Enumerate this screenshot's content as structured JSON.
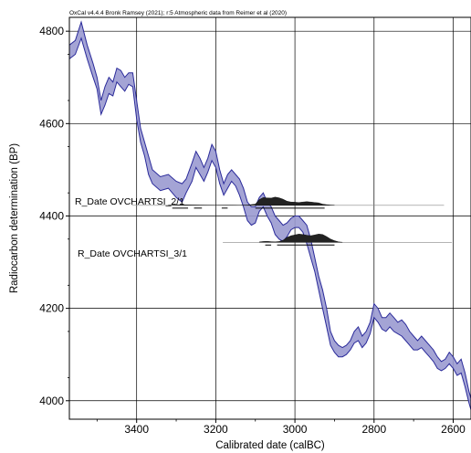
{
  "header": "OxCal v4.4.4 Bronk Ramsey (2021); r:5 Atmospheric data from Reimer et al (2020)",
  "chart_data": {
    "type": "area",
    "xlabel": "Calibrated date (calBC)",
    "ylabel": "Radiocarbon determination (BP)",
    "xlim": [
      3570,
      2555
    ],
    "ylim": [
      3960,
      4830
    ],
    "x_reversed": true,
    "xticks": [
      3400,
      3200,
      3000,
      2800,
      2600
    ],
    "yticks": [
      4000,
      4200,
      4400,
      4600,
      4800
    ],
    "grid": true,
    "band_color": "#9a9ad0",
    "band_edge_color": "#2a2a9a",
    "calibration_curve": {
      "x": [
        3570,
        3555,
        3540,
        3525,
        3510,
        3500,
        3490,
        3480,
        3470,
        3460,
        3450,
        3440,
        3430,
        3420,
        3410,
        3400,
        3390,
        3380,
        3370,
        3360,
        3340,
        3320,
        3300,
        3285,
        3275,
        3260,
        3250,
        3240,
        3230,
        3220,
        3210,
        3200,
        3190,
        3180,
        3170,
        3160,
        3150,
        3140,
        3130,
        3120,
        3110,
        3100,
        3090,
        3080,
        3070,
        3060,
        3050,
        3040,
        3030,
        3020,
        3010,
        3000,
        2990,
        2980,
        2970,
        2960,
        2950,
        2940,
        2930,
        2920,
        2910,
        2900,
        2890,
        2880,
        2870,
        2860,
        2850,
        2840,
        2830,
        2820,
        2810,
        2800,
        2790,
        2780,
        2770,
        2760,
        2750,
        2740,
        2730,
        2720,
        2710,
        2700,
        2690,
        2680,
        2670,
        2660,
        2650,
        2640,
        2630,
        2620,
        2610,
        2600,
        2590,
        2580,
        2570,
        2560,
        2555
      ],
      "upper": [
        4770,
        4780,
        4820,
        4770,
        4730,
        4700,
        4650,
        4680,
        4700,
        4690,
        4720,
        4715,
        4700,
        4710,
        4710,
        4650,
        4590,
        4560,
        4530,
        4500,
        4485,
        4490,
        4475,
        4470,
        4480,
        4515,
        4540,
        4525,
        4505,
        4525,
        4555,
        4540,
        4500,
        4470,
        4490,
        4500,
        4490,
        4480,
        4460,
        4430,
        4420,
        4420,
        4440,
        4450,
        4430,
        4420,
        4400,
        4390,
        4380,
        4385,
        4395,
        4400,
        4400,
        4390,
        4380,
        4350,
        4310,
        4270,
        4240,
        4200,
        4150,
        4130,
        4120,
        4115,
        4120,
        4130,
        4150,
        4160,
        4140,
        4150,
        4170,
        4210,
        4200,
        4180,
        4180,
        4190,
        4180,
        4170,
        4175,
        4165,
        4150,
        4140,
        4130,
        4140,
        4130,
        4120,
        4110,
        4095,
        4085,
        4090,
        4105,
        4095,
        4080,
        4090,
        4060,
        4020,
        4005
      ],
      "lower": [
        4740,
        4750,
        4785,
        4740,
        4700,
        4675,
        4620,
        4640,
        4665,
        4660,
        4690,
        4680,
        4670,
        4685,
        4680,
        4610,
        4560,
        4530,
        4490,
        4470,
        4455,
        4460,
        4440,
        4430,
        4450,
        4475,
        4505,
        4490,
        4475,
        4495,
        4520,
        4505,
        4470,
        4445,
        4460,
        4475,
        4465,
        4445,
        4420,
        4390,
        4380,
        4385,
        4410,
        4420,
        4400,
        4385,
        4360,
        4350,
        4345,
        4355,
        4370,
        4375,
        4375,
        4365,
        4340,
        4310,
        4280,
        4240,
        4200,
        4160,
        4120,
        4105,
        4095,
        4095,
        4100,
        4110,
        4125,
        4130,
        4115,
        4125,
        4145,
        4180,
        4170,
        4155,
        4150,
        4160,
        4150,
        4145,
        4140,
        4130,
        4120,
        4110,
        4110,
        4115,
        4105,
        4095,
        4085,
        4070,
        4065,
        4070,
        4080,
        4070,
        4055,
        4060,
        4030,
        3995,
        3980
      ]
    },
    "annotations": [
      "R_Date OVCHARTSI_2/1",
      "R_Date OVCHARTSI_3/1"
    ],
    "posteriors": [
      {
        "name": "R_Date OVCHARTSI_2/1",
        "baseline_y": 4423,
        "x": [
          3320,
          3300,
          3280,
          3260,
          3240,
          3220,
          3200,
          3180,
          3160,
          3140,
          3120,
          3100,
          3090,
          3080,
          3070,
          3060,
          3050,
          3040,
          3030,
          3020,
          3010,
          3000,
          2990,
          2980,
          2970,
          2960,
          2950,
          2940,
          2930,
          2920,
          2910,
          2900
        ],
        "density": [
          0.03,
          0.05,
          0.06,
          0.05,
          0.04,
          0.03,
          0.02,
          0.03,
          0.03,
          0.02,
          0.04,
          0.15,
          0.7,
          0.95,
          0.9,
          0.88,
          1.0,
          0.92,
          0.75,
          0.5,
          0.4,
          0.38,
          0.35,
          0.4,
          0.45,
          0.4,
          0.35,
          0.3,
          0.15,
          0.08,
          0.04,
          0.01
        ],
        "range_bars": [
          [
            3310,
            3270
          ],
          [
            3255,
            3235
          ],
          [
            3185,
            3170
          ],
          [
            3100,
            2925
          ]
        ]
      },
      {
        "name": "R_Date OVCHARTSI_3/1",
        "baseline_y": 4343,
        "x": [
          3090,
          3080,
          3070,
          3060,
          3050,
          3040,
          3030,
          3020,
          3010,
          3000,
          2990,
          2980,
          2970,
          2960,
          2950,
          2940,
          2930,
          2920,
          2910,
          2900,
          2890,
          2880
        ],
        "density": [
          0.04,
          0.1,
          0.12,
          0.08,
          0.06,
          0.1,
          0.25,
          0.6,
          0.8,
          0.9,
          1.0,
          0.95,
          0.85,
          0.8,
          0.9,
          1.0,
          0.95,
          0.7,
          0.4,
          0.2,
          0.06,
          0.01
        ],
        "range_bars": [
          [
            3075,
            3060
          ],
          [
            3045,
            2900
          ]
        ]
      }
    ]
  }
}
